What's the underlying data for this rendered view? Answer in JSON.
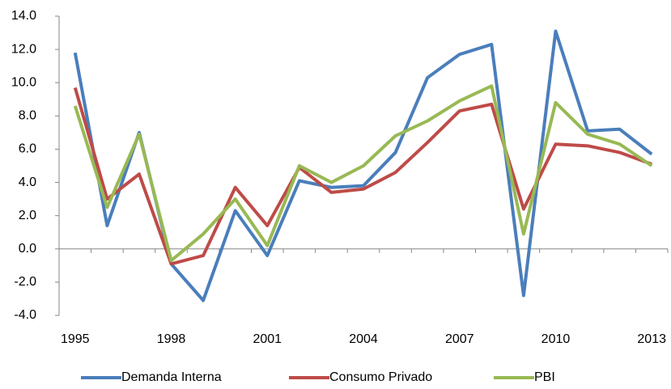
{
  "chart_data": {
    "type": "line",
    "categories": [
      "1995",
      null,
      null,
      "1998",
      null,
      null,
      "2001",
      null,
      null,
      "2004",
      null,
      null,
      "2007",
      null,
      null,
      "2010",
      null,
      null,
      "2013"
    ],
    "series": [
      {
        "name": "Demanda Interna",
        "color": "#4a7ebb",
        "values": [
          11.8,
          1.4,
          7.0,
          -0.9,
          -3.1,
          2.3,
          -0.4,
          4.1,
          3.7,
          3.8,
          5.8,
          10.3,
          11.7,
          12.3,
          -2.8,
          13.1,
          7.1,
          7.2,
          5.7
        ]
      },
      {
        "name": "Consumo Privado",
        "color": "#be4b48",
        "values": [
          9.7,
          3.0,
          4.5,
          -0.9,
          -0.4,
          3.7,
          1.4,
          4.9,
          3.4,
          3.6,
          4.6,
          6.4,
          8.3,
          8.7,
          2.4,
          6.3,
          6.2,
          5.8,
          5.1
        ]
      },
      {
        "name": "PBI",
        "color": "#98b954",
        "values": [
          8.6,
          2.5,
          6.9,
          -0.7,
          0.9,
          3.0,
          0.2,
          5.0,
          4.0,
          5.0,
          6.8,
          7.7,
          8.9,
          9.8,
          0.9,
          8.8,
          6.9,
          6.3,
          5.0
        ]
      }
    ],
    "ylim": [
      -4,
      14
    ],
    "yticks": [
      {
        "value": -4,
        "label": "-4.0"
      },
      {
        "value": -2,
        "label": "-2.0"
      },
      {
        "value": 0,
        "label": "0.0"
      },
      {
        "value": 2,
        "label": "2.0"
      },
      {
        "value": 4,
        "label": "4.0"
      },
      {
        "value": 6,
        "label": "6.0"
      },
      {
        "value": 8,
        "label": "8.0"
      },
      {
        "value": 10,
        "label": "10.0"
      },
      {
        "value": 12,
        "label": "12.0"
      },
      {
        "value": 14,
        "label": "14.0"
      }
    ],
    "legend": "bottom"
  }
}
